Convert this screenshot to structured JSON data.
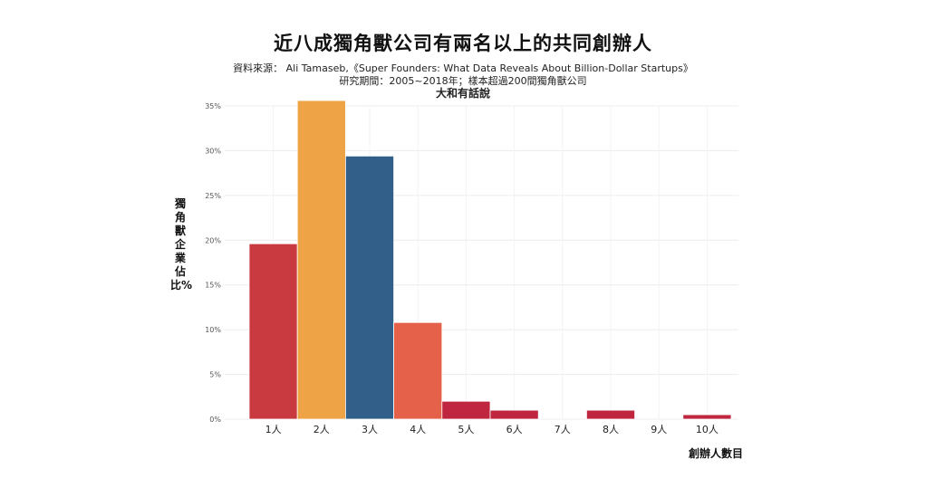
{
  "header": {
    "title": "近八成獨角獸公司有兩名以上的共同創辦人",
    "source": "資料來源： Ali Tamaseb,《Super Founders: What Data Reveals About Billion-Dollar Startups》",
    "period": "研究期間：2005~2018年；樣本超過200間獨角獸公司",
    "brand": "大和有話說"
  },
  "chart_data": {
    "type": "bar",
    "categories": [
      "1人",
      "2人",
      "3人",
      "4人",
      "5人",
      "6人",
      "7人",
      "8人",
      "9人",
      "10人"
    ],
    "values": [
      19.6,
      35.6,
      29.4,
      10.8,
      2.0,
      1.0,
      0,
      1.0,
      0,
      0.5
    ],
    "colors": [
      "#c93a40",
      "#eea347",
      "#325f8a",
      "#e6614a",
      "#c0263f",
      "#c0263f",
      "#c0263f",
      "#c0263f",
      "#c0263f",
      "#c0263f"
    ],
    "xlabel": "創辦人數目",
    "ylabel": "獨角獸企業佔比%",
    "yticks": [
      "0%",
      "5%",
      "10%",
      "15%",
      "20%",
      "25%",
      "30%",
      "35%"
    ],
    "ylim": [
      0,
      35
    ],
    "grid": true
  }
}
